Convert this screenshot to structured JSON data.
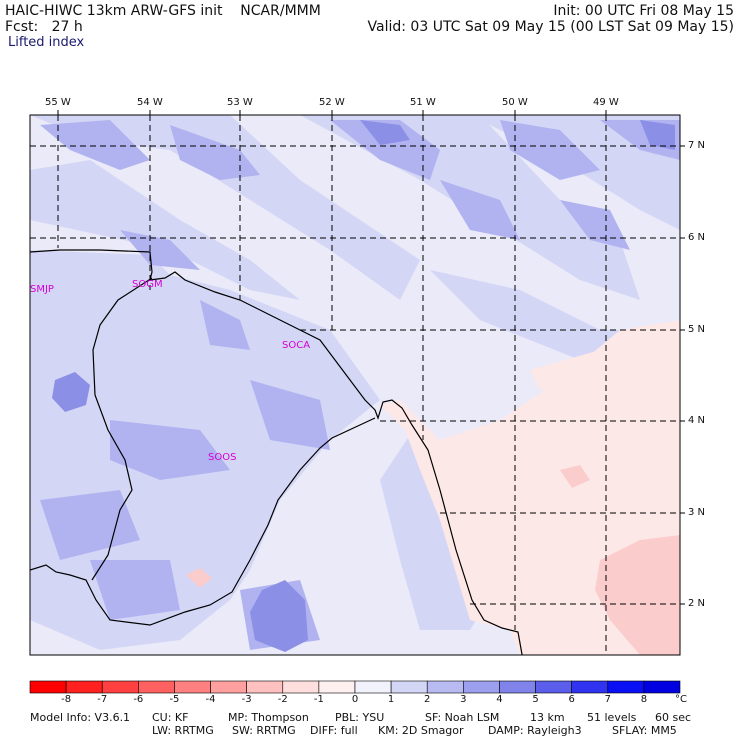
{
  "header": {
    "model_line": "HAIC-HIWC 13km ARW-GFS init    NCAR/MMM",
    "fcst_line": "Fcst:   27 h",
    "field": "Lifted index",
    "init_line": "Init: 00 UTC Fri 08 May 15",
    "valid_line": "Valid: 03 UTC Sat 09 May 15 (00 LST Sat 09 May 15)"
  },
  "map": {
    "lon_labels": [
      "55 W",
      "54 W",
      "53 W",
      "52 W",
      "51 W",
      "50 W",
      "49 W"
    ],
    "lat_labels": [
      "7 N",
      "6 N",
      "5 N",
      "4 N",
      "3 N",
      "2 N"
    ],
    "stations": [
      "SMJP",
      "SOGM",
      "SOCA",
      "SOOS"
    ],
    "colors": {
      "background": "#eaeaf8",
      "light_blue": "#d4d6f6",
      "mid_blue": "#b0b3f0",
      "dark_blue": "#8c8fe6",
      "pink": "#fde8e8",
      "mid_pink": "#fbcccc",
      "station": "#d400d4"
    }
  },
  "legend": {
    "labels": [
      "-8",
      "-7",
      "-6",
      "-5",
      "-4",
      "-3",
      "-2",
      "-1",
      "0",
      "1",
      "2",
      "3",
      "4",
      "5",
      "6",
      "7",
      "8"
    ],
    "unit": "°C",
    "colors": [
      "#ff0000",
      "#ff2020",
      "#ff4040",
      "#ff6060",
      "#ff8080",
      "#ffa0a0",
      "#ffc0c0",
      "#ffdede",
      "#fff0f0",
      "#f2f2fc",
      "#d4d6f6",
      "#b8bbf2",
      "#9c9fee",
      "#8084ea",
      "#5a5eea",
      "#3034f0",
      "#0a10f4",
      "#0000e0"
    ]
  },
  "footer": {
    "line1": [
      "Model Info: V3.6.1",
      "CU: KF",
      "MP: Thompson",
      "PBL: YSU",
      "SF: Noah LSM",
      "13 km",
      "51 levels",
      "60 sec"
    ],
    "line2": [
      "LW: RRTMG",
      "SW: RRTMG",
      "DIFF: full",
      "KM: 2D Smagor",
      "DAMP: Rayleigh3",
      "SFLAY: MM5"
    ]
  }
}
